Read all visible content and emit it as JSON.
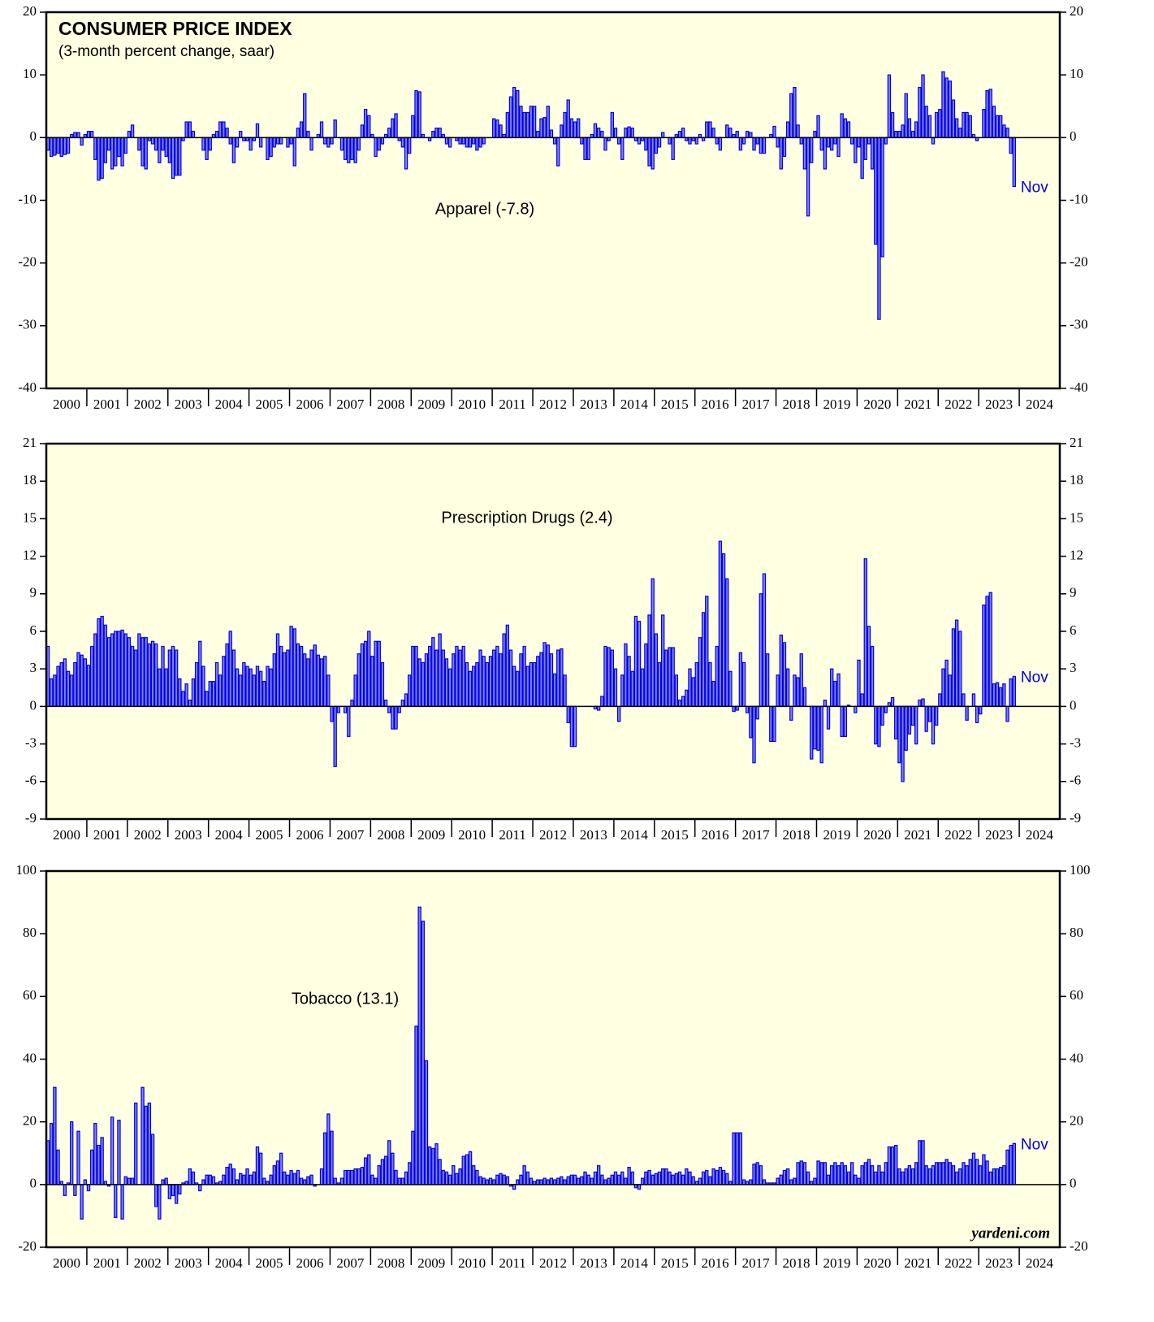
{
  "chart_data": [
    {
      "type": "bar",
      "title": "CONSUMER PRICE INDEX",
      "subtitle": "(3-month percent change, saar)",
      "label": "Apparel (-7.8)",
      "end_label": "Nov",
      "color": "#8080ff",
      "edge_color": "#0000e0",
      "ylim": [
        -40,
        20
      ],
      "yticks": [
        -40,
        -30,
        -20,
        -10,
        0,
        10,
        20
      ],
      "categories": [
        "2000",
        "2001",
        "2002",
        "2003",
        "2004",
        "2005",
        "2006",
        "2007",
        "2008",
        "2009",
        "2010",
        "2011",
        "2012",
        "2013",
        "2014",
        "2015",
        "2016",
        "2017",
        "2018",
        "2019",
        "2020",
        "2021",
        "2022",
        "2023",
        "2024"
      ],
      "values": [
        [
          -2,
          -3,
          -2.8,
          -2.5,
          -3,
          -2.7,
          -2.5,
          0.5,
          0.8,
          0.8,
          -1.2,
          0.5
        ],
        [
          1,
          1,
          -3.5,
          -6.8,
          -6.5,
          -4,
          -2,
          -5,
          -4.5,
          -3,
          -4.5,
          -2.5
        ],
        [
          1,
          2,
          0,
          -2,
          -4.5,
          -5,
          -0.5,
          -1,
          -2,
          -4,
          -2,
          -3
        ],
        [
          -4,
          -6.5,
          -6,
          -6,
          -0.5,
          2.5,
          2.5,
          1,
          0,
          0,
          -2,
          -3.5
        ],
        [
          -2,
          0.5,
          1,
          2.5,
          2.5,
          1.5,
          -1,
          -4,
          -1.5,
          1,
          -0.5,
          -0.5
        ],
        [
          -2,
          -0.5,
          2.2,
          -1.5,
          0,
          -3.5,
          -3,
          -1.5,
          -1,
          -1,
          0,
          -1.5
        ],
        [
          -1,
          -4.5,
          1.5,
          2.5,
          7,
          1,
          -2,
          0,
          0.5,
          2.5,
          -1,
          -1.5
        ],
        [
          -1,
          2.8,
          0,
          -2,
          -3.5,
          -4,
          -3.5,
          -4,
          -2,
          2,
          4.5,
          3.5
        ],
        [
          0.5,
          -3,
          -2,
          -1,
          0.5,
          1.5,
          3,
          3.8,
          -0.5,
          -1.5,
          -5,
          -2.5
        ],
        [
          3.5,
          7.5,
          7.3,
          0.5,
          0,
          -0.5,
          1,
          1.5,
          1.5,
          0.5,
          -1,
          -1.5
        ],
        [
          0,
          -0.5,
          -1,
          -1,
          -1.5,
          -1.5,
          -1,
          -2,
          -1.5,
          -1,
          0,
          0
        ],
        [
          3,
          2.8,
          2,
          0.5,
          4,
          6.5,
          8,
          7.5,
          5,
          4,
          4,
          5
        ],
        [
          5,
          1,
          3,
          3.2,
          5,
          1.2,
          -1,
          -4.5,
          2,
          4,
          6,
          3
        ],
        [
          2.5,
          3,
          -1,
          -3.5,
          -3.5,
          0.5,
          2.2,
          1.5,
          1,
          -2,
          -0.5,
          4
        ],
        [
          1.5,
          -1,
          -3.5,
          1.5,
          1.7,
          1.5,
          -0.5,
          -1,
          -0.5,
          -2,
          -4.5,
          -5
        ],
        [
          -2.5,
          -1.5,
          0.8,
          0,
          -1,
          -3.5,
          0.5,
          1,
          1.5,
          -0.5,
          -1,
          -0.5
        ],
        [
          -1,
          0.5,
          -0.5,
          2.5,
          2.5,
          1.5,
          -1,
          -2,
          0,
          2,
          1.5,
          0.5
        ],
        [
          1,
          -2,
          -1,
          1,
          0.8,
          -2,
          -1,
          -2.5,
          -2.5,
          0,
          0.5,
          1.8
        ],
        [
          -1.5,
          -5,
          -3,
          2.5,
          7,
          8,
          2,
          -1,
          -5,
          -12.5,
          -4,
          1
        ],
        [
          3.5,
          -2,
          -5,
          -1.5,
          -2,
          -1,
          -3,
          3.8,
          3,
          2.5,
          -1,
          -4
        ],
        [
          -1.5,
          -6.5,
          -3.5,
          -1,
          -5,
          -17,
          -29,
          -19,
          -1,
          10,
          4,
          1
        ],
        [
          1,
          2,
          7,
          3,
          1,
          2.5,
          8,
          10,
          5,
          3.5,
          -1,
          4
        ],
        [
          4.5,
          10.5,
          9.5,
          9,
          6,
          3,
          1.5,
          4,
          4,
          3.5,
          0.5,
          -0.5
        ],
        [
          0,
          4.5,
          7.5,
          7.7,
          5,
          3.5,
          3.5,
          2,
          1.5,
          -2.5,
          -7.8
        ],
        []
      ]
    },
    {
      "type": "bar",
      "label": "Prescription Drugs (2.4)",
      "end_label": "Nov",
      "color": "#8080ff",
      "edge_color": "#0000e0",
      "ylim": [
        -9,
        21
      ],
      "yticks": [
        -9,
        -6,
        -3,
        0,
        3,
        6,
        9,
        12,
        15,
        18,
        21
      ],
      "categories": [
        "2000",
        "2001",
        "2002",
        "2003",
        "2004",
        "2005",
        "2006",
        "2007",
        "2008",
        "2009",
        "2010",
        "2011",
        "2012",
        "2013",
        "2014",
        "2015",
        "2016",
        "2017",
        "2018",
        "2019",
        "2020",
        "2021",
        "2022",
        "2023",
        "2024"
      ],
      "values": [
        [
          4.8,
          2.2,
          2.5,
          3.2,
          3.5,
          3.8,
          2.8,
          2.5,
          3.5,
          4.3,
          4.1,
          3.8
        ],
        [
          3.3,
          4.8,
          5.8,
          7,
          7.2,
          6.5,
          5.5,
          5.8,
          6,
          6,
          6.1,
          5.8
        ],
        [
          5.5,
          4.8,
          4.5,
          5.8,
          5.5,
          5.5,
          5,
          5.2,
          5,
          3,
          4.8,
          3
        ],
        [
          4.5,
          4.8,
          4.5,
          2.2,
          1.2,
          1.8,
          0.5,
          2.2,
          3.5,
          5.2,
          3.2,
          1.2
        ],
        [
          2,
          2,
          3.5,
          2.5,
          4,
          5,
          6,
          4.5,
          3,
          2.5,
          3.5,
          3.2
        ],
        [
          3,
          2.5,
          3.2,
          2.8,
          2,
          3.2,
          3,
          4.2,
          5.8,
          4.8,
          4.3,
          4.5
        ],
        [
          6.4,
          6.2,
          5,
          4.8,
          4.2,
          3.8,
          4.5,
          4.9,
          4.1,
          3.8,
          4,
          2.5
        ],
        [
          -1.2,
          -4.8,
          -0.5,
          0,
          -0.5,
          -2.4,
          0.5,
          2.5,
          4.2,
          5,
          5.2,
          6
        ],
        [
          4,
          5.2,
          5.2,
          3.5,
          0.5,
          -0.5,
          -1.8,
          -1.8,
          -0.5,
          0.5,
          1,
          2.5
        ],
        [
          4.8,
          4.8,
          3.8,
          3.5,
          4.2,
          4.8,
          5.5,
          4.5,
          5.8,
          4.5,
          3.8,
          3
        ],
        [
          4.2,
          4.8,
          4.5,
          4.8,
          3.5,
          2.8,
          3.2,
          3.5,
          4.5,
          4,
          3.5,
          4
        ],
        [
          4.5,
          4.8,
          4.2,
          5.8,
          6.5,
          4.5,
          3.2,
          2.8,
          4.2,
          4.8,
          3.2,
          3.5
        ],
        [
          3.5,
          4,
          4.3,
          5.1,
          4.9,
          4.2,
          2.6,
          4.5,
          4.6,
          2.5,
          -1.3,
          -3.2
        ],
        [
          -3.2,
          0,
          0,
          0,
          0,
          0,
          -0.2,
          -0.3,
          0.8,
          4.8,
          4.7,
          4.5
        ],
        [
          3,
          -1.2,
          2.5,
          5,
          4,
          2.8,
          7.2,
          6.8,
          3,
          5,
          7.3,
          10.2
        ],
        [
          5.8,
          3.5,
          7.3,
          4.5,
          4.7,
          4.7,
          2.5,
          0.5,
          0.8,
          1.3,
          3,
          2.3
        ],
        [
          3.5,
          5.5,
          7.5,
          8.8,
          3.5,
          2,
          4.8,
          13.2,
          12.2,
          10.2,
          2.8,
          -0.4
        ],
        [
          -0.3,
          4.3,
          3.5,
          -0.5,
          -2.5,
          -4.5,
          -1,
          9,
          10.6,
          4.2,
          -2.8,
          -2.8
        ],
        [
          2.5,
          5.7,
          5.1,
          3,
          -1.1,
          2.5,
          2.3,
          4.2,
          1.5,
          0,
          -4.2,
          -3.4
        ],
        [
          -3.5,
          -4.5,
          0.5,
          -1.8,
          3,
          2,
          2.6,
          -2.4,
          -2.4,
          0.1,
          0,
          -0.5
        ],
        [
          3.7,
          1,
          11.8,
          6.4,
          4.8,
          -3,
          -3.2,
          -1.5,
          -0.5,
          0.3,
          0.7,
          -2.6
        ],
        [
          -4.5,
          -6,
          -3.5,
          -2.2,
          -1.5,
          -3,
          0.5,
          0.6,
          -2,
          -1.2,
          -3,
          -1.5
        ],
        [
          1,
          3,
          3.7,
          2.5,
          6.2,
          6.9,
          6,
          1,
          -1.1,
          0,
          1,
          -1.3
        ],
        [
          -0.6,
          8.1,
          8.8,
          9.1,
          1.8,
          1.9,
          1.5,
          1.8,
          -1.2,
          2.2,
          2.4
        ],
        []
      ]
    },
    {
      "type": "bar",
      "label": "Tobacco (13.1)",
      "end_label": "Nov",
      "source": "yardeni.com",
      "color": "#8080ff",
      "edge_color": "#0000e0",
      "ylim": [
        -20,
        100
      ],
      "yticks": [
        -20,
        0,
        20,
        40,
        60,
        80,
        100
      ],
      "categories": [
        "2000",
        "2001",
        "2002",
        "2003",
        "2004",
        "2005",
        "2006",
        "2007",
        "2008",
        "2009",
        "2010",
        "2011",
        "2012",
        "2013",
        "2014",
        "2015",
        "2016",
        "2017",
        "2018",
        "2019",
        "2020",
        "2021",
        "2022",
        "2023",
        "2024"
      ],
      "values": [
        [
          14,
          19.5,
          31,
          11,
          1,
          -3.5,
          0.5,
          20,
          -3.5,
          17,
          -11,
          1.5
        ],
        [
          -2,
          11,
          19.5,
          12.5,
          15,
          1,
          -0.5,
          21.5,
          -10.5,
          20.5,
          -11,
          2.5
        ],
        [
          2,
          2,
          26,
          0,
          31,
          25,
          26,
          16,
          -7,
          -11,
          1.5,
          2
        ],
        [
          -4.5,
          -3.5,
          -6,
          -3,
          0.5,
          1,
          5,
          4,
          0.5,
          -2,
          1.5,
          3
        ],
        [
          3,
          2.5,
          0.5,
          1,
          3,
          5.5,
          6.5,
          5,
          1.5,
          3.5,
          3,
          5
        ],
        [
          3,
          4,
          12,
          10,
          2,
          1,
          3,
          6,
          7.5,
          10,
          4,
          3
        ],
        [
          4.5,
          3.5,
          4.5,
          2,
          1.5,
          2.5,
          3,
          -0.5,
          0,
          5,
          16.5,
          22.5
        ],
        [
          17,
          2,
          0.5,
          2,
          4.5,
          4.5,
          4.5,
          5,
          5,
          5.5,
          8.5,
          9.5
        ],
        [
          3,
          2,
          6,
          8,
          9,
          14,
          10,
          4.5,
          2,
          2,
          4,
          7
        ],
        [
          17,
          50.5,
          88.5,
          84,
          39.5,
          12,
          11.5,
          13,
          8,
          4.5,
          4,
          3
        ],
        [
          6,
          3.5,
          5,
          9,
          9.5,
          10.5,
          6,
          4.5,
          2.5,
          2,
          1.5,
          2
        ],
        [
          1.5,
          3,
          3.5,
          3,
          2.5,
          -0.5,
          -1.5,
          1.5,
          3,
          6,
          4,
          2
        ],
        [
          1,
          1.5,
          1.5,
          2,
          1.5,
          2,
          1.5,
          2,
          2.5,
          1.5,
          2.5,
          3
        ],
        [
          3,
          2,
          2.5,
          4,
          3,
          2,
          4,
          6,
          3,
          1.5,
          2,
          3
        ],
        [
          4,
          3,
          4,
          2,
          5.5,
          4,
          -1,
          -1.5,
          2,
          4,
          4.5,
          3
        ],
        [
          3.5,
          4,
          5,
          5,
          4,
          3,
          3.5,
          4,
          3,
          5,
          4,
          2.5
        ],
        [
          1,
          2,
          4,
          4.5,
          2.5,
          5,
          4.5,
          5.5,
          4.5,
          3.5,
          1,
          16.5
        ],
        [
          16.5,
          16.5,
          1.5,
          1,
          1.5,
          6.5,
          7,
          6,
          1.5,
          0.5,
          0.5,
          0.5
        ],
        [
          2,
          3,
          4.5,
          5,
          1.5,
          2,
          7,
          7.5,
          7,
          4,
          1,
          2
        ],
        [
          7.5,
          7,
          7,
          3,
          6,
          7,
          6,
          7,
          6,
          4,
          7,
          3
        ],
        [
          2,
          6,
          7,
          8,
          6,
          4,
          6,
          4,
          7,
          12,
          12,
          12.5
        ],
        [
          5,
          4,
          5,
          6,
          5,
          7,
          14,
          14,
          6,
          5,
          6,
          7
        ],
        [
          7,
          7,
          8,
          7,
          6,
          4,
          5,
          7,
          6,
          8,
          10,
          8
        ],
        [
          6,
          9.5,
          7.5,
          4,
          5,
          5,
          5.5,
          6,
          11,
          12.5,
          13.1
        ],
        []
      ]
    }
  ]
}
